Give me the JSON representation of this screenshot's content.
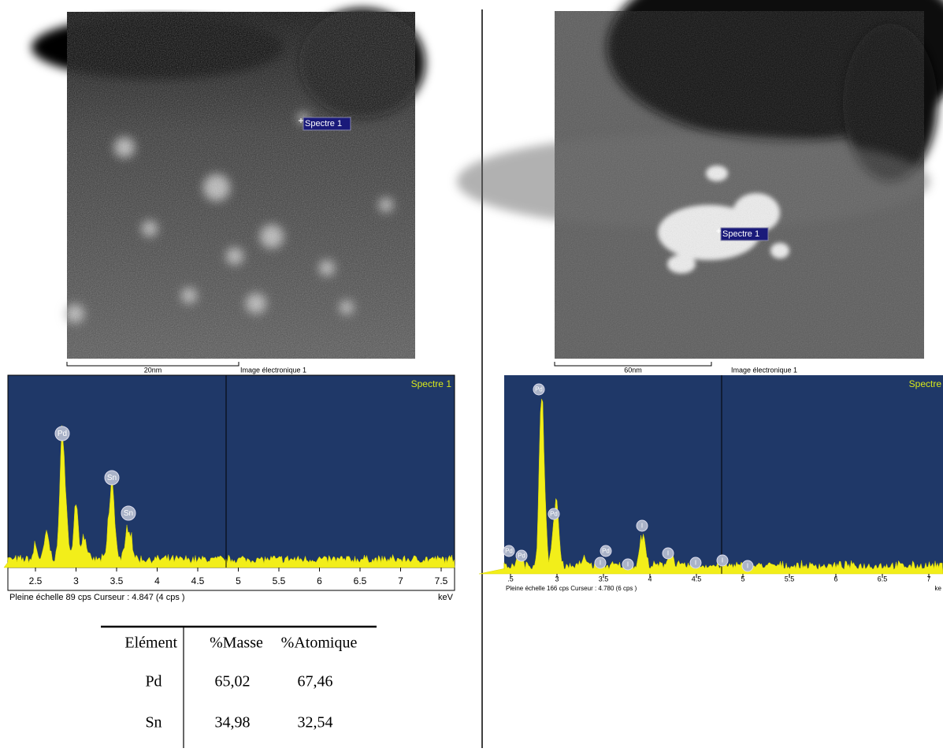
{
  "left": {
    "image": {
      "label": "Spectre 1",
      "scale_bar": "20nm",
      "caption": "Image électronique 1"
    },
    "spectrum": {
      "title": "Spectre 1",
      "peaks": [
        "Pd",
        "Sn",
        "Sn"
      ],
      "ticks": [
        "2.5",
        "3",
        "3.5",
        "4",
        "4.5",
        "5",
        "5.5",
        "6",
        "6.5",
        "7",
        "7.5"
      ],
      "status": "Pleine échelle 89 cps  Curseur : 4.847  (4 cps )",
      "unit": "keV"
    },
    "table": {
      "header": [
        "Elément",
        "%Masse",
        "%Atomique"
      ],
      "rows": [
        [
          "Pd",
          "65,02",
          "67,46"
        ],
        [
          "Sn",
          "34,98",
          "32,54"
        ]
      ]
    }
  },
  "right": {
    "image": {
      "label": "Spectre 1",
      "scale_bar": "60nm",
      "caption": "Image électronique 1"
    },
    "spectrum": {
      "title": "Spectre",
      "peaks": [
        "Pd",
        "Pd",
        "Pd",
        "Pd",
        "Pd",
        "I",
        "I",
        "I",
        "I",
        "I",
        "I",
        "I"
      ],
      "ticks": [
        ".5",
        "3",
        "3.5",
        "4",
        "4.5",
        "5",
        "5.5",
        "6",
        "6.5",
        "7"
      ],
      "status": "Pleine échelle 166 cps  Curseur : 4.780  (6 cps )",
      "unit": "ke"
    }
  }
}
